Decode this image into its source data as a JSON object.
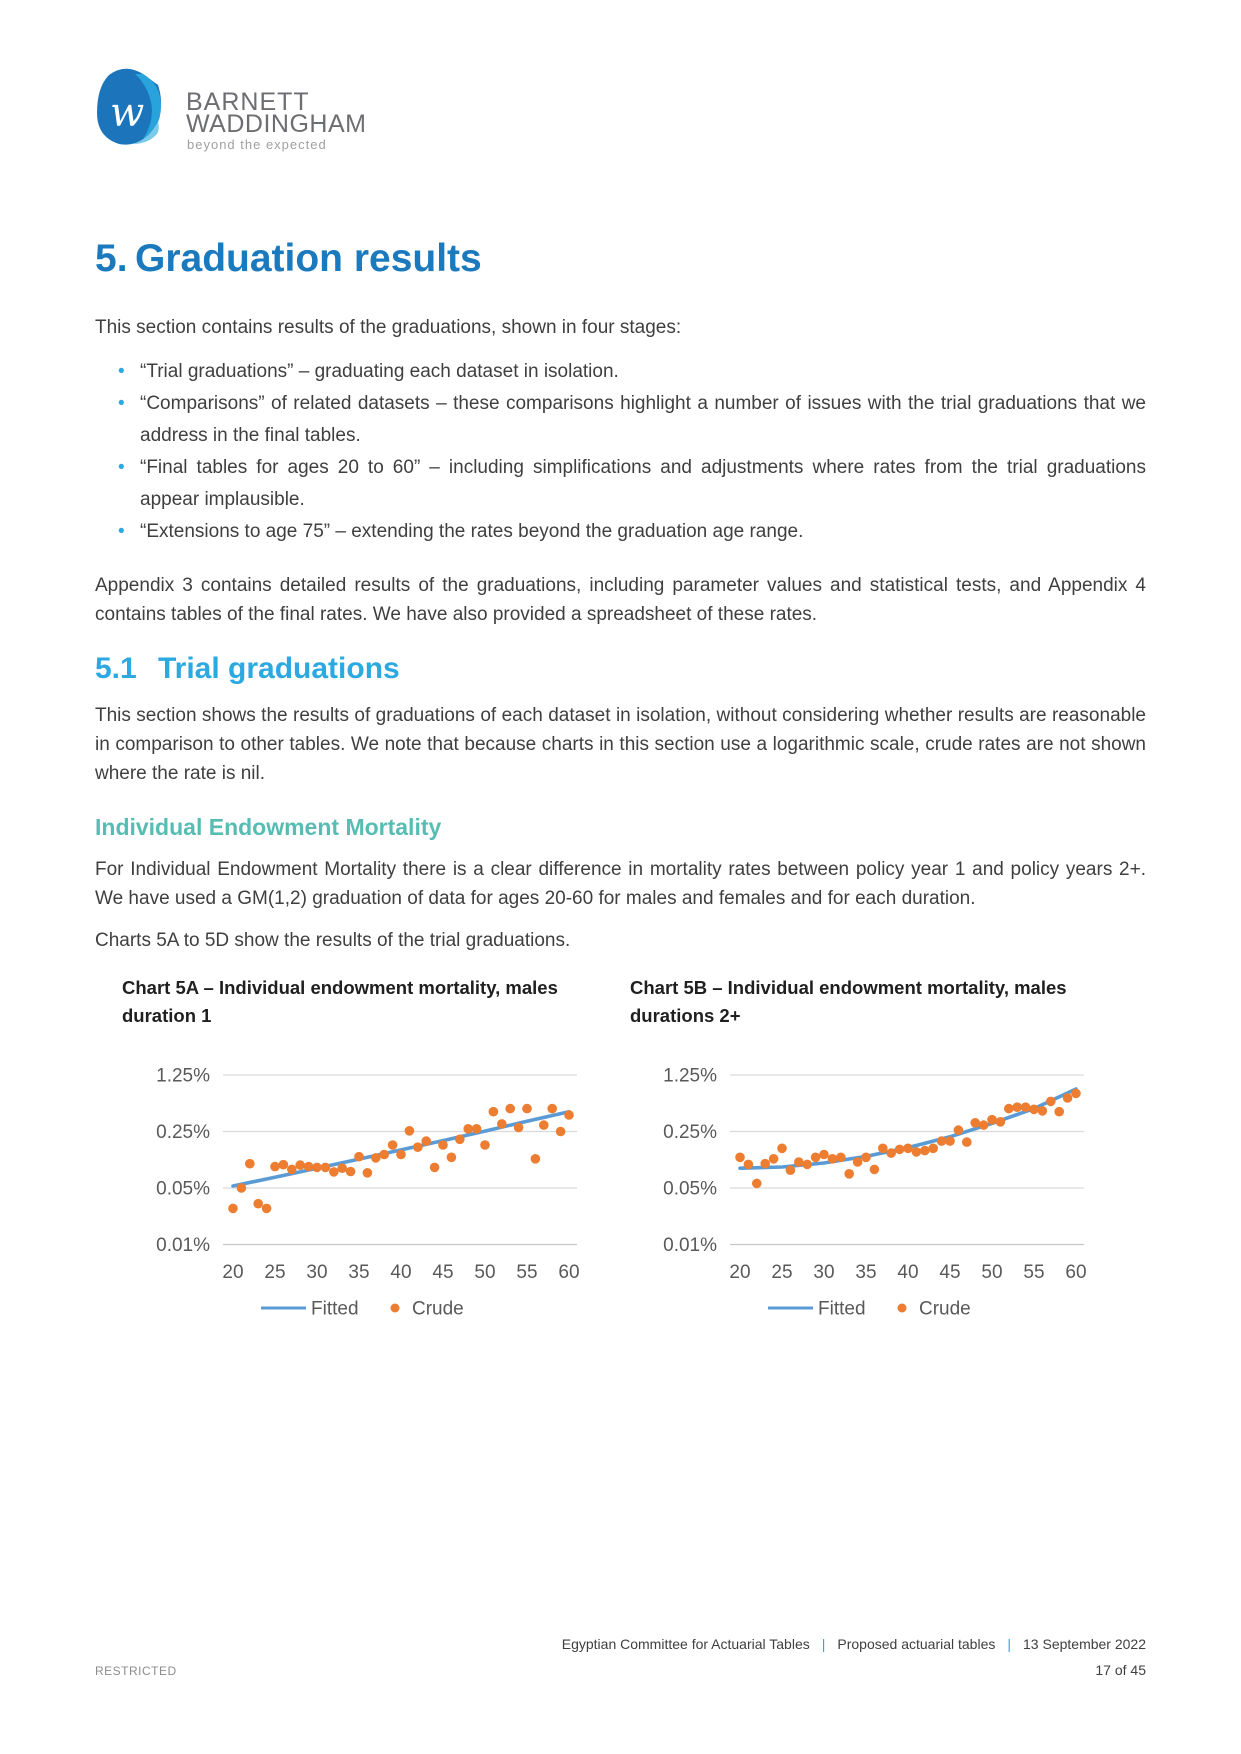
{
  "logo": {
    "brand_line1": "BARNETT",
    "brand_line2": "WADDINGHAM",
    "tagline": "beyond the expected",
    "colors": {
      "primary": "#1c75bb",
      "mid": "#29a3db",
      "light": "#7acbea",
      "text": "#6d6e71"
    }
  },
  "heading": {
    "number": "5.",
    "text": "Graduation results",
    "color": "#1b79be"
  },
  "intro": "This section contains results of the graduations, shown in four stages:",
  "bullet_glyph": "•",
  "bullets": [
    "“Trial graduations” – graduating each dataset in isolation.",
    "“Comparisons” of related datasets – these comparisons highlight a number of issues with the trial graduations that we address in the final tables.",
    "“Final tables for ages 20 to 60” – including simplifications and adjustments where rates from the trial graduations appear implausible.",
    "“Extensions to age 75” – extending the rates beyond the graduation age range."
  ],
  "appendix_para": "Appendix 3 contains detailed results of the graduations, including parameter values and statistical tests, and Appendix 4 contains tables of the final rates. We have also provided a spreadsheet of these rates.",
  "section": {
    "number": "5.1",
    "title": "Trial graduations",
    "color": "#2ba9e0"
  },
  "section_para": "This section shows the results of graduations of each dataset in isolation, without considering whether results are reasonable in comparison to other tables. We note that because charts in this section use a logarithmic scale, crude rates are not shown where the rate is nil.",
  "subsection_title": "Individual Endowment Mortality",
  "subsection_para": "For Individual Endowment Mortality there is a clear difference in mortality rates between policy year 1 and policy years 2+. We have used a GM(1,2) graduation of data for ages 20-60 for males and females and for each duration.",
  "charts_intro": "Charts 5A to 5D show the results of the trial graduations.",
  "chart_data": [
    {
      "type": "scatter",
      "title": "Chart 5A – Individual endowment mortality, males duration 1",
      "y_scale": "log",
      "grid": true,
      "legend_position": "bottom",
      "y_ticks": [
        {
          "label": "1.25%",
          "value": 1.25
        },
        {
          "label": "0.25%",
          "value": 0.25
        },
        {
          "label": "0.05%",
          "value": 0.05
        },
        {
          "label": "0.01%",
          "value": 0.01
        }
      ],
      "x_ticks": [
        20,
        25,
        30,
        35,
        40,
        45,
        50,
        55,
        60
      ],
      "x_range": [
        20,
        60
      ],
      "legend": [
        "Fitted",
        "Crude"
      ],
      "series": [
        {
          "name": "Fitted",
          "type": "line",
          "color": "#5b9bd5",
          "x": [
            20,
            25,
            30,
            35,
            40,
            45,
            50,
            55,
            60
          ],
          "y_pct": [
            0.053,
            0.068,
            0.088,
            0.114,
            0.148,
            0.193,
            0.253,
            0.335,
            0.44
          ]
        },
        {
          "name": "Crude",
          "type": "scatter",
          "color": "#ed7d31",
          "x": [
            20,
            21,
            22,
            23,
            24,
            25,
            26,
            27,
            28,
            29,
            30,
            31,
            32,
            33,
            34,
            35,
            36,
            37,
            38,
            39,
            40,
            41,
            42,
            43,
            44,
            45,
            46,
            47,
            48,
            49,
            50,
            51,
            52,
            53,
            54,
            55,
            56,
            57,
            58,
            59,
            60
          ],
          "y_pct": [
            0.028,
            0.05,
            0.1,
            0.032,
            0.028,
            0.092,
            0.097,
            0.085,
            0.096,
            0.092,
            0.09,
            0.09,
            0.079,
            0.088,
            0.08,
            0.122,
            0.077,
            0.118,
            0.13,
            0.17,
            0.13,
            0.255,
            0.16,
            0.19,
            0.09,
            0.17,
            0.12,
            0.2,
            0.27,
            0.27,
            0.17,
            0.44,
            0.31,
            0.48,
            0.28,
            0.48,
            0.115,
            0.3,
            0.48,
            0.25,
            0.4
          ]
        }
      ]
    },
    {
      "type": "scatter",
      "title": "Chart 5B – Individual endowment mortality, males durations 2+",
      "y_scale": "log",
      "grid": true,
      "legend_position": "bottom",
      "y_ticks": [
        {
          "label": "1.25%",
          "value": 1.25
        },
        {
          "label": "0.25%",
          "value": 0.25
        },
        {
          "label": "0.05%",
          "value": 0.05
        },
        {
          "label": "0.01%",
          "value": 0.01
        }
      ],
      "x_ticks": [
        20,
        25,
        30,
        35,
        40,
        45,
        50,
        55,
        60
      ],
      "x_range": [
        20,
        60
      ],
      "legend": [
        "Fitted",
        "Crude"
      ],
      "series": [
        {
          "name": "Fitted",
          "type": "line",
          "color": "#5b9bd5",
          "x": [
            20,
            25,
            30,
            35,
            40,
            45,
            50,
            55,
            60
          ],
          "y_pct": [
            0.088,
            0.091,
            0.102,
            0.123,
            0.158,
            0.215,
            0.315,
            0.48,
            0.84
          ]
        },
        {
          "name": "Crude",
          "type": "scatter",
          "color": "#ed7d31",
          "x": [
            20,
            21,
            22,
            23,
            24,
            25,
            26,
            27,
            28,
            29,
            30,
            31,
            32,
            33,
            34,
            35,
            36,
            37,
            38,
            39,
            40,
            41,
            42,
            43,
            44,
            45,
            46,
            47,
            48,
            49,
            50,
            51,
            52,
            53,
            54,
            55,
            56,
            57,
            58,
            59,
            60
          ],
          "y_pct": [
            0.12,
            0.098,
            0.057,
            0.1,
            0.115,
            0.155,
            0.083,
            0.105,
            0.098,
            0.12,
            0.13,
            0.115,
            0.12,
            0.075,
            0.105,
            0.12,
            0.085,
            0.155,
            0.135,
            0.15,
            0.155,
            0.14,
            0.145,
            0.155,
            0.19,
            0.19,
            0.26,
            0.185,
            0.32,
            0.3,
            0.35,
            0.33,
            0.48,
            0.5,
            0.5,
            0.47,
            0.45,
            0.59,
            0.44,
            0.65,
            0.74
          ]
        }
      ]
    }
  ],
  "footer": {
    "doc_info": [
      "Egyptian Committee for Actuarial Tables",
      "Proposed actuarial tables",
      "13 September 2022"
    ],
    "separator": "|",
    "classification": "RESTRICTED",
    "page_number": "17 of 45"
  }
}
